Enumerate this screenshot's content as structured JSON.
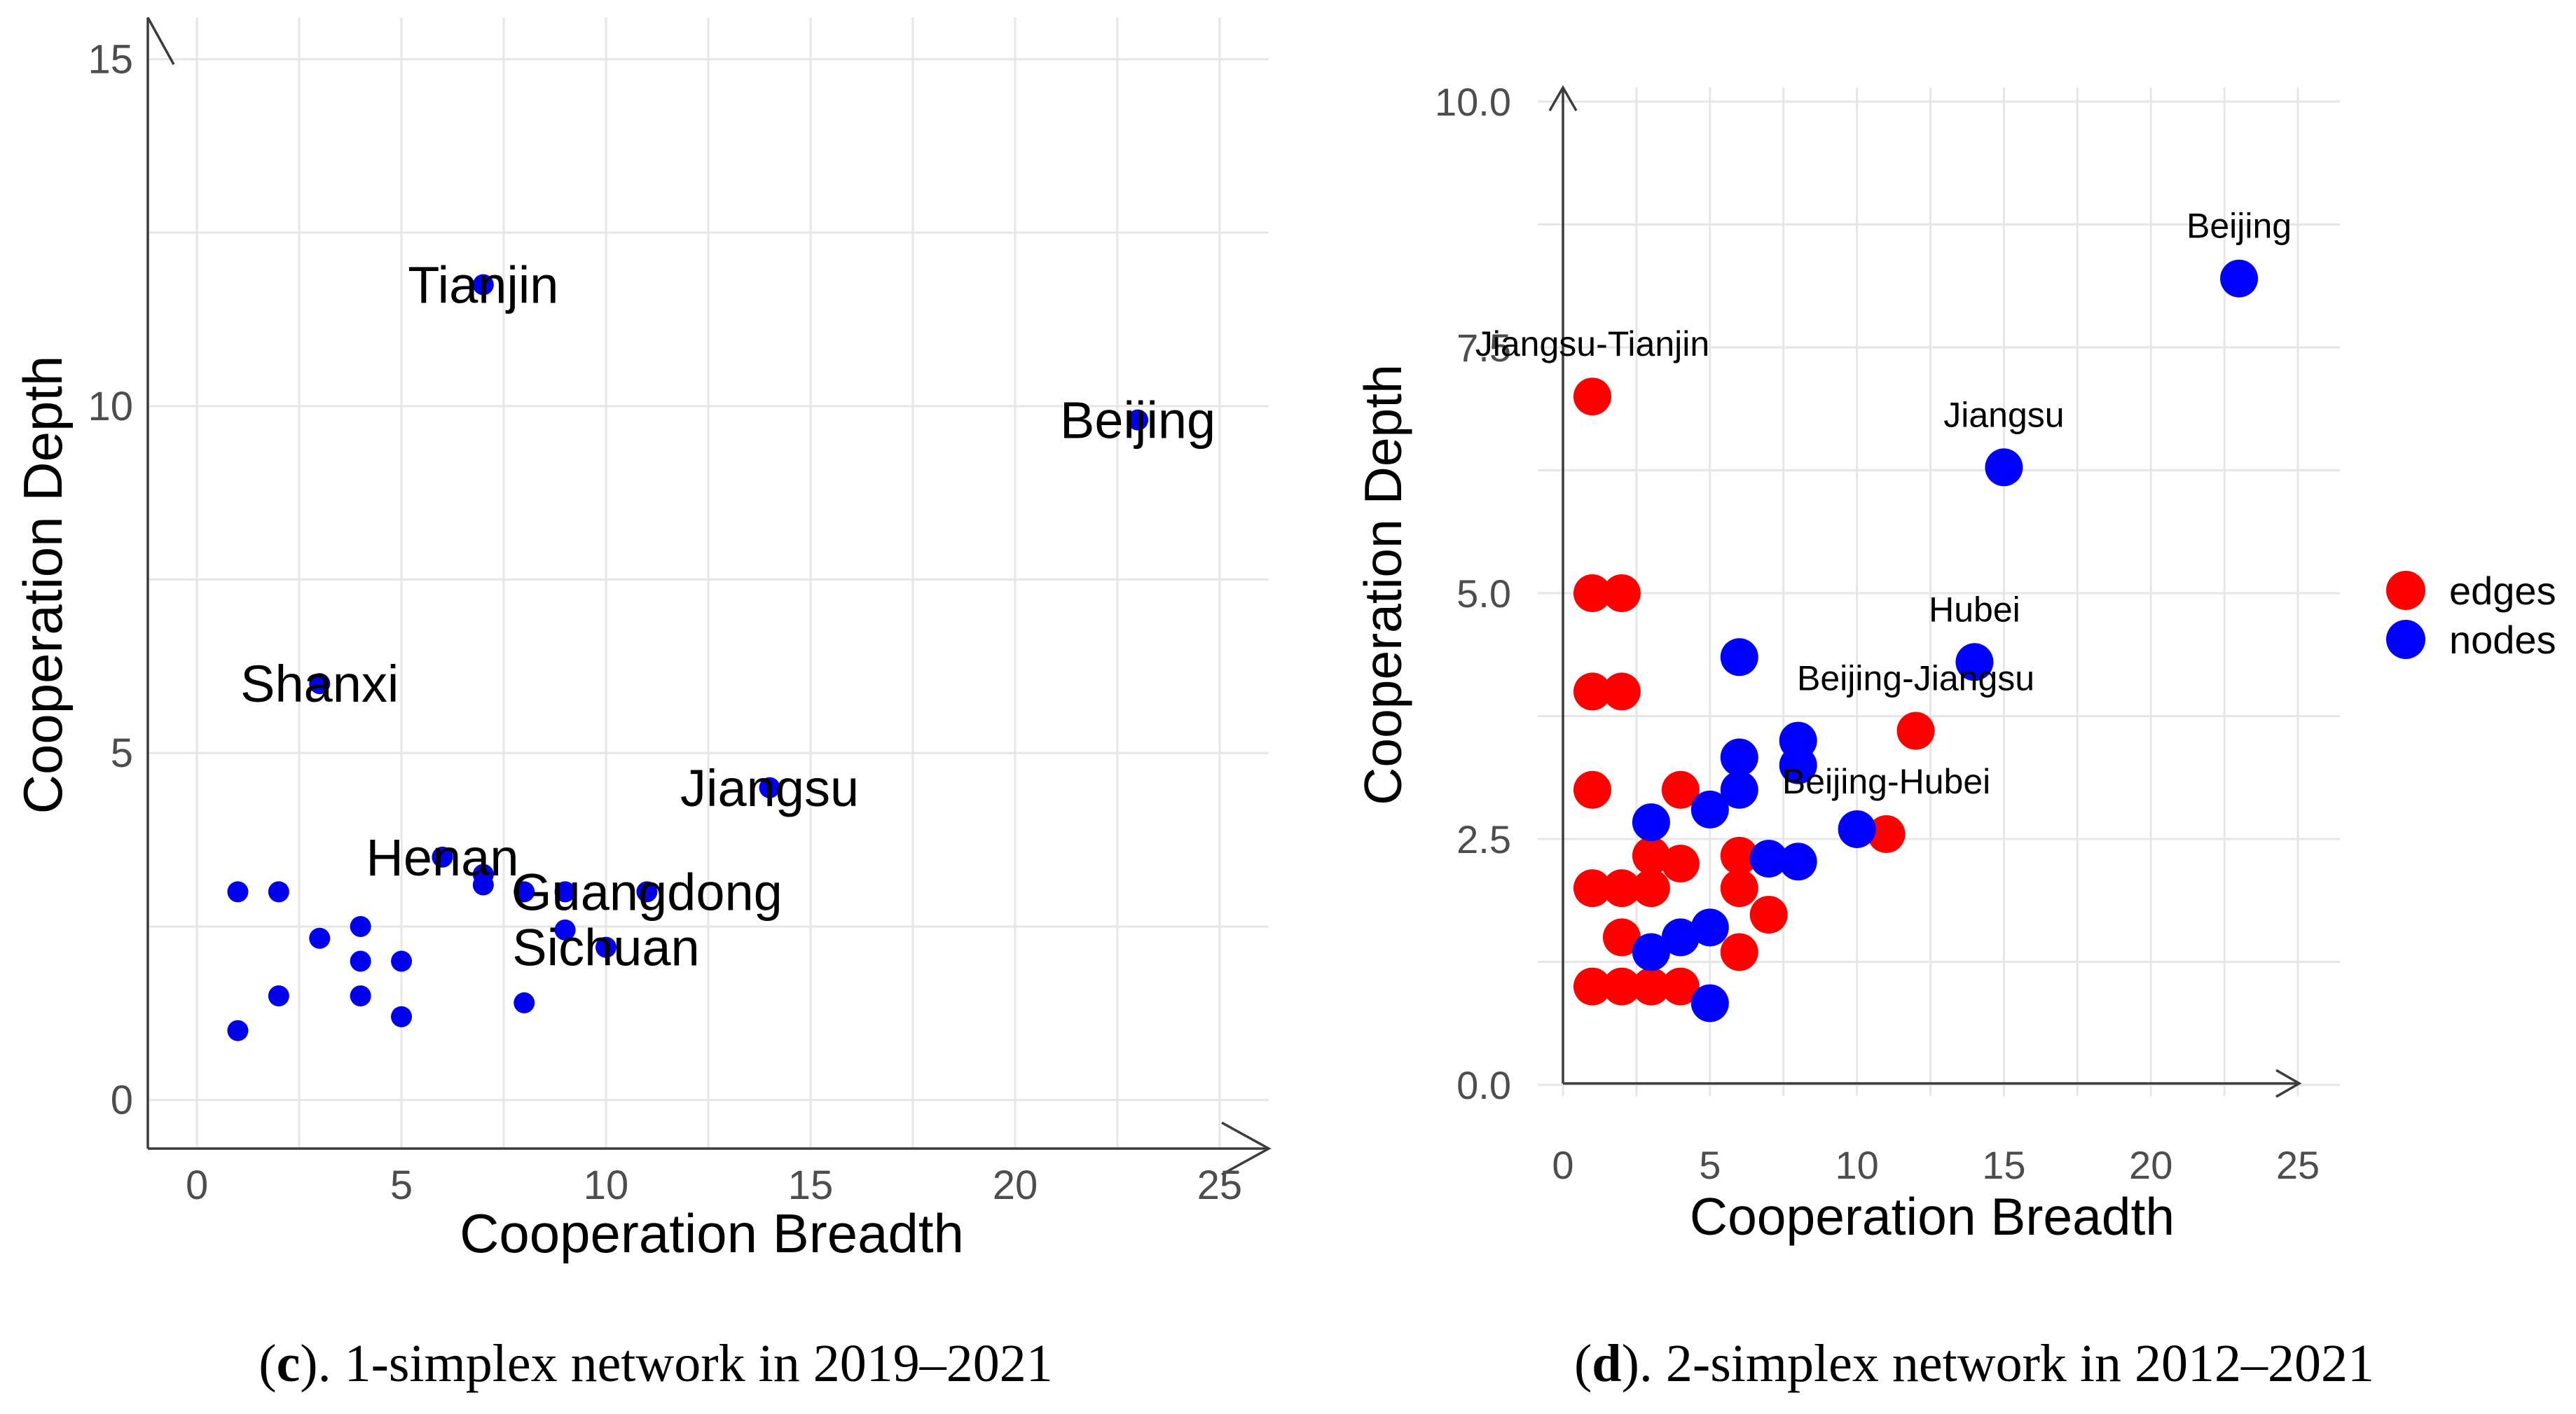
{
  "chart_data": [
    {
      "type": "scatter",
      "title": "",
      "caption": {
        "panel": "c",
        "text": ". 1-simplex network in 2019–2021"
      },
      "xlabel": "Cooperation Breadth",
      "ylabel": "Cooperation Depth",
      "xlim": [
        -1.2,
        26.2
      ],
      "ylim": [
        -0.7,
        15.6
      ],
      "xticks": [
        0,
        5,
        10,
        15,
        20,
        25
      ],
      "yticks": [
        0,
        5,
        10,
        15
      ],
      "color": "#0000ee",
      "points": [
        {
          "x": 23,
          "y": 9.8,
          "label": "Beijing"
        },
        {
          "x": 7,
          "y": 11.75,
          "label": "Tianjin"
        },
        {
          "x": 3,
          "y": 6.0,
          "label": "Shanxi"
        },
        {
          "x": 14,
          "y": 4.5,
          "label": "Jiangsu"
        },
        {
          "x": 6,
          "y": 3.5,
          "label": "Henan"
        },
        {
          "x": 11,
          "y": 3.0,
          "label": "Guangdong"
        },
        {
          "x": 10,
          "y": 2.2,
          "label": "Sichuan"
        },
        {
          "x": 1,
          "y": 3.0,
          "label": ""
        },
        {
          "x": 2,
          "y": 3.0,
          "label": ""
        },
        {
          "x": 1,
          "y": 1.0,
          "label": ""
        },
        {
          "x": 2,
          "y": 1.5,
          "label": ""
        },
        {
          "x": 3,
          "y": 2.33,
          "label": ""
        },
        {
          "x": 4,
          "y": 2.5,
          "label": ""
        },
        {
          "x": 4,
          "y": 2.0,
          "label": ""
        },
        {
          "x": 4,
          "y": 1.5,
          "label": ""
        },
        {
          "x": 5,
          "y": 2.0,
          "label": ""
        },
        {
          "x": 5,
          "y": 1.2,
          "label": ""
        },
        {
          "x": 7,
          "y": 3.25,
          "label": ""
        },
        {
          "x": 7,
          "y": 3.1,
          "label": ""
        },
        {
          "x": 8,
          "y": 3.0,
          "label": ""
        },
        {
          "x": 8,
          "y": 1.4,
          "label": ""
        },
        {
          "x": 9,
          "y": 3.0,
          "label": ""
        },
        {
          "x": 9,
          "y": 2.45,
          "label": ""
        }
      ]
    },
    {
      "type": "scatter",
      "title": "",
      "caption": {
        "panel": "d",
        "text": ". 2-simplex network in 2012–2021"
      },
      "xlabel": "Cooperation Breadth",
      "ylabel": "Cooperation Depth",
      "xlim": [
        -0.25,
        26.2
      ],
      "ylim": [
        -0.2,
        10.1
      ],
      "xticks": [
        0,
        5,
        10,
        15,
        20,
        25
      ],
      "yticks": [
        0.0,
        2.5,
        5.0,
        7.5,
        10.0
      ],
      "ytick_labels": [
        "0.0",
        "2.5",
        "5.0",
        "7.5",
        "10.0"
      ],
      "legend": {
        "position": "right",
        "entries": [
          {
            "name": "edges",
            "color": "#ff0000"
          },
          {
            "name": "nodes",
            "color": "#0000ff"
          }
        ]
      },
      "series": [
        {
          "name": "edges",
          "color": "#ff0000",
          "points": [
            {
              "x": 1,
              "y": 7.0,
              "label": "Jiangsu-Tianjin"
            },
            {
              "x": 12,
              "y": 3.6,
              "label": "Beijing-Jiangsu"
            },
            {
              "x": 11,
              "y": 2.55,
              "label": "Beijing-Hubei"
            },
            {
              "x": 1,
              "y": 5.0,
              "label": ""
            },
            {
              "x": 2,
              "y": 5.0,
              "label": ""
            },
            {
              "x": 1,
              "y": 4.0,
              "label": ""
            },
            {
              "x": 2,
              "y": 4.0,
              "label": ""
            },
            {
              "x": 1,
              "y": 3.0,
              "label": ""
            },
            {
              "x": 4,
              "y": 3.0,
              "label": ""
            },
            {
              "x": 1,
              "y": 2.0,
              "label": ""
            },
            {
              "x": 2,
              "y": 2.0,
              "label": ""
            },
            {
              "x": 3,
              "y": 2.0,
              "label": ""
            },
            {
              "x": 3,
              "y": 2.33,
              "label": ""
            },
            {
              "x": 4,
              "y": 2.25,
              "label": ""
            },
            {
              "x": 6,
              "y": 2.33,
              "label": ""
            },
            {
              "x": 6,
              "y": 2.0,
              "label": ""
            },
            {
              "x": 7,
              "y": 1.73,
              "label": ""
            },
            {
              "x": 2,
              "y": 1.5,
              "label": ""
            },
            {
              "x": 6,
              "y": 1.35,
              "label": ""
            },
            {
              "x": 1,
              "y": 1.0,
              "label": ""
            },
            {
              "x": 2,
              "y": 1.0,
              "label": ""
            },
            {
              "x": 3,
              "y": 1.0,
              "label": ""
            },
            {
              "x": 4,
              "y": 1.0,
              "label": ""
            }
          ]
        },
        {
          "name": "nodes",
          "color": "#0000ff",
          "points": [
            {
              "x": 23,
              "y": 8.2,
              "label": "Beijing"
            },
            {
              "x": 15,
              "y": 6.28,
              "label": "Jiangsu"
            },
            {
              "x": 14,
              "y": 4.3,
              "label": "Hubei"
            },
            {
              "x": 6,
              "y": 4.35,
              "label": ""
            },
            {
              "x": 8,
              "y": 3.5,
              "label": ""
            },
            {
              "x": 6,
              "y": 3.33,
              "label": ""
            },
            {
              "x": 8,
              "y": 3.25,
              "label": ""
            },
            {
              "x": 6,
              "y": 3.0,
              "label": ""
            },
            {
              "x": 5,
              "y": 2.8,
              "label": ""
            },
            {
              "x": 3,
              "y": 2.67,
              "label": ""
            },
            {
              "x": 10,
              "y": 2.6,
              "label": ""
            },
            {
              "x": 7,
              "y": 2.3,
              "label": ""
            },
            {
              "x": 8,
              "y": 2.27,
              "label": ""
            },
            {
              "x": 5,
              "y": 1.6,
              "label": ""
            },
            {
              "x": 4,
              "y": 1.5,
              "label": ""
            },
            {
              "x": 3,
              "y": 1.35,
              "label": ""
            },
            {
              "x": 5,
              "y": 0.83,
              "label": ""
            }
          ]
        }
      ]
    }
  ]
}
